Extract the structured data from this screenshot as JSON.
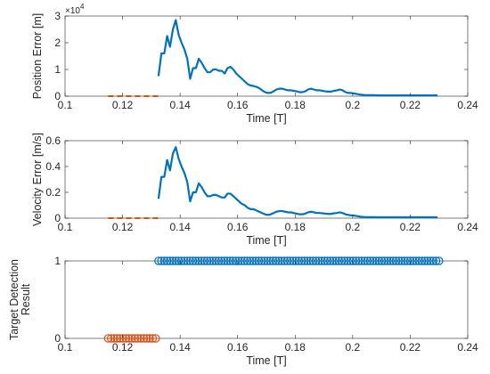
{
  "chart_data": [
    {
      "type": "line",
      "xlabel": "Time [T]",
      "ylabel": "Position Error [m]",
      "y_multiplier_label": "×10",
      "y_multiplier_exponent": "4",
      "xlim": [
        0.1,
        0.24
      ],
      "ylim": [
        0,
        3
      ],
      "xticks": [
        "0.1",
        "0.12",
        "0.14",
        "0.16",
        "0.18",
        "0.2",
        "0.22",
        "0.24"
      ],
      "yticks": [
        "0",
        "1",
        "2",
        "3"
      ],
      "series": [
        {
          "color": "#0072BD",
          "style": "solid",
          "x": [
            0.1325,
            0.1335,
            0.1345,
            0.1355,
            0.1365,
            0.1375,
            0.1385,
            0.1395,
            0.1405,
            0.1415,
            0.1425,
            0.1435,
            0.1445,
            0.1455,
            0.1465,
            0.1475,
            0.1485,
            0.1495,
            0.1505,
            0.1515,
            0.1525,
            0.1535,
            0.1545,
            0.1555,
            0.1565,
            0.1575,
            0.1585,
            0.1595,
            0.1605,
            0.1615,
            0.1625,
            0.1635,
            0.1645,
            0.1655,
            0.1665,
            0.1675,
            0.1685,
            0.1695,
            0.1705,
            0.1715,
            0.1725,
            0.1735,
            0.1745,
            0.1755,
            0.1765,
            0.1775,
            0.1785,
            0.1795,
            0.1805,
            0.1815,
            0.1825,
            0.1835,
            0.1845,
            0.1855,
            0.1865,
            0.1875,
            0.1885,
            0.1895,
            0.1905,
            0.1915,
            0.1925,
            0.1935,
            0.1945,
            0.1955,
            0.1965,
            0.1975,
            0.1985,
            0.1995,
            0.2005,
            0.2015,
            0.2025,
            0.2035,
            0.2045,
            0.2055,
            0.2065,
            0.2075,
            0.2085,
            0.2095,
            0.2105,
            0.2115,
            0.2125,
            0.2135,
            0.2145,
            0.2155,
            0.2165,
            0.2175,
            0.2185,
            0.2195,
            0.2205,
            0.2215,
            0.2225,
            0.2235,
            0.2245,
            0.2255,
            0.2265,
            0.2275,
            0.2285,
            0.2295
          ],
          "y": [
            0.75,
            1.6,
            1.6,
            2.25,
            1.85,
            2.5,
            2.85,
            2.3,
            2.0,
            1.75,
            1.4,
            0.65,
            1.05,
            1.05,
            1.4,
            1.25,
            1.05,
            0.9,
            0.9,
            1.0,
            1.0,
            0.95,
            0.95,
            0.85,
            1.05,
            1.1,
            1.0,
            0.85,
            0.75,
            0.65,
            0.55,
            0.45,
            0.4,
            0.38,
            0.35,
            0.3,
            0.22,
            0.15,
            0.12,
            0.13,
            0.18,
            0.25,
            0.28,
            0.28,
            0.25,
            0.22,
            0.22,
            0.2,
            0.18,
            0.15,
            0.15,
            0.18,
            0.25,
            0.28,
            0.25,
            0.22,
            0.22,
            0.2,
            0.18,
            0.17,
            0.17,
            0.2,
            0.22,
            0.25,
            0.22,
            0.15,
            0.12,
            0.12,
            0.1,
            0.08,
            0.06,
            0.05,
            0.04,
            0.04,
            0.04,
            0.04,
            0.03,
            0.03,
            0.03,
            0.03,
            0.03,
            0.03,
            0.03,
            0.03,
            0.03,
            0.03,
            0.03,
            0.03,
            0.03,
            0.03,
            0.03,
            0.03,
            0.03,
            0.03,
            0.03,
            0.03,
            0.03,
            0.03
          ]
        },
        {
          "color": "#D95319",
          "style": "dashed",
          "x": [
            0.115,
            0.1325
          ],
          "y": [
            0,
            0
          ]
        }
      ]
    },
    {
      "type": "line",
      "xlabel": "Time [T]",
      "ylabel": "Velocity Error [m/s]",
      "xlim": [
        0.1,
        0.24
      ],
      "ylim": [
        0,
        0.6
      ],
      "xticks": [
        "0.1",
        "0.12",
        "0.14",
        "0.16",
        "0.18",
        "0.2",
        "0.22",
        "0.24"
      ],
      "yticks": [
        "0",
        "0.2",
        "0.4",
        "0.6"
      ],
      "series": [
        {
          "color": "#0072BD",
          "style": "solid",
          "x": [
            0.1325,
            0.1335,
            0.1345,
            0.1355,
            0.1365,
            0.1375,
            0.1385,
            0.1395,
            0.1405,
            0.1415,
            0.1425,
            0.1435,
            0.1445,
            0.1455,
            0.1465,
            0.1475,
            0.1485,
            0.1495,
            0.1505,
            0.1515,
            0.1525,
            0.1535,
            0.1545,
            0.1555,
            0.1565,
            0.1575,
            0.1585,
            0.1595,
            0.1605,
            0.1615,
            0.1625,
            0.1635,
            0.1645,
            0.1655,
            0.1665,
            0.1675,
            0.1685,
            0.1695,
            0.1705,
            0.1715,
            0.1725,
            0.1735,
            0.1745,
            0.1755,
            0.1765,
            0.1775,
            0.1785,
            0.1795,
            0.1805,
            0.1815,
            0.1825,
            0.1835,
            0.1845,
            0.1855,
            0.1865,
            0.1875,
            0.1885,
            0.1895,
            0.1905,
            0.1915,
            0.1925,
            0.1935,
            0.1945,
            0.1955,
            0.1965,
            0.1975,
            0.1985,
            0.1995,
            0.2005,
            0.2015,
            0.2025,
            0.2035,
            0.2045,
            0.2055,
            0.2065,
            0.2075,
            0.2085,
            0.2095,
            0.2105,
            0.2115,
            0.2125,
            0.2135,
            0.2145,
            0.2155,
            0.2165,
            0.2175,
            0.2185,
            0.2195,
            0.2205,
            0.2215,
            0.2225,
            0.2235,
            0.2245,
            0.2255,
            0.2265,
            0.2275,
            0.2285,
            0.2295
          ],
          "y": [
            0.15,
            0.32,
            0.32,
            0.45,
            0.37,
            0.5,
            0.55,
            0.46,
            0.4,
            0.35,
            0.28,
            0.13,
            0.2,
            0.2,
            0.27,
            0.24,
            0.2,
            0.17,
            0.17,
            0.18,
            0.18,
            0.17,
            0.16,
            0.16,
            0.19,
            0.19,
            0.17,
            0.15,
            0.13,
            0.11,
            0.1,
            0.08,
            0.07,
            0.07,
            0.06,
            0.05,
            0.04,
            0.03,
            0.025,
            0.03,
            0.04,
            0.05,
            0.055,
            0.055,
            0.05,
            0.045,
            0.045,
            0.04,
            0.035,
            0.03,
            0.03,
            0.035,
            0.045,
            0.05,
            0.045,
            0.04,
            0.04,
            0.038,
            0.035,
            0.033,
            0.033,
            0.038,
            0.04,
            0.045,
            0.04,
            0.03,
            0.025,
            0.022,
            0.02,
            0.016,
            0.012,
            0.01,
            0.008,
            0.008,
            0.008,
            0.008,
            0.007,
            0.007,
            0.007,
            0.007,
            0.007,
            0.007,
            0.007,
            0.007,
            0.007,
            0.007,
            0.007,
            0.007,
            0.007,
            0.007,
            0.007,
            0.007,
            0.007,
            0.007,
            0.007,
            0.007,
            0.007,
            0.007
          ]
        },
        {
          "color": "#D95319",
          "style": "dashed",
          "x": [
            0.115,
            0.1325
          ],
          "y": [
            0,
            0
          ]
        }
      ]
    },
    {
      "type": "scatter",
      "xlabel": "Time [T]",
      "ylabel_lines": [
        "Target Detection",
        "Result"
      ],
      "xlim": [
        0.1,
        0.24
      ],
      "ylim": [
        0,
        1
      ],
      "xticks": [
        "0.1",
        "0.12",
        "0.14",
        "0.16",
        "0.18",
        "0.2",
        "0.22",
        "0.24"
      ],
      "yticks": [
        "0",
        "1"
      ],
      "series": [
        {
          "color": "#0072BD",
          "marker": "circle",
          "x_range": [
            0.1325,
            0.23
          ],
          "count": 99,
          "y": 1
        },
        {
          "color": "#D95319",
          "marker": "circle",
          "x_range": [
            0.115,
            0.1315
          ],
          "count": 17,
          "y": 0
        }
      ]
    }
  ]
}
